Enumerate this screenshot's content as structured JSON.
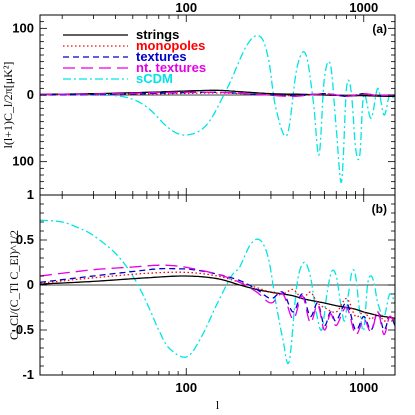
{
  "chart_data": [
    {
      "type": "line",
      "panel_label": "(a)",
      "ylabel": "l(l+1)C_l/2π[μK²]",
      "xscale": "log",
      "xlim": [
        15,
        1500
      ],
      "ylim": [
        -150,
        120
      ],
      "top_ticks": [
        100,
        1000
      ],
      "y_ticks": [
        100,
        0,
        100
      ],
      "legend_placement": "top-left",
      "series": [
        {
          "name": "strings",
          "color": "#000000",
          "dash": "solid",
          "x": [
            15,
            30,
            60,
            100,
            150,
            200,
            300,
            450,
            600,
            800,
            1000,
            1300,
            1500
          ],
          "y": [
            1,
            2,
            4,
            6,
            7,
            5,
            2,
            1,
            0,
            -1,
            -1,
            -2,
            -2
          ]
        },
        {
          "name": "monopoles",
          "color": "#ff0000",
          "dash": "dotted",
          "x": [
            15,
            40,
            80,
            150,
            250,
            400,
            600,
            800,
            1000,
            1200,
            1500
          ],
          "y": [
            0,
            1,
            2,
            3,
            1,
            -1,
            1,
            -1,
            1,
            -1,
            0
          ]
        },
        {
          "name": "textures",
          "color": "#0000cc",
          "dash": "dashed",
          "x": [
            15,
            40,
            80,
            150,
            250,
            400,
            600,
            800,
            1000,
            1200,
            1500
          ],
          "y": [
            0,
            1,
            3,
            4,
            1,
            -1,
            2,
            -2,
            2,
            -1,
            0
          ]
        },
        {
          "name": "nt. textures",
          "color": "#e600e6",
          "dash": "long-dashed",
          "x": [
            15,
            40,
            80,
            150,
            250,
            400,
            600,
            800,
            1000,
            1200,
            1500
          ],
          "y": [
            1,
            2,
            4,
            4,
            1,
            -2,
            2,
            -2,
            2,
            -1,
            0
          ]
        },
        {
          "name": "sCDM",
          "color": "#00e5e5",
          "dash": "dash-dot",
          "x": [
            15,
            30,
            45,
            60,
            80,
            100,
            130,
            170,
            220,
            260,
            290,
            320,
            370,
            420,
            470,
            520,
            560,
            600,
            650,
            700,
            750,
            800,
            850,
            900,
            950,
            1000,
            1100,
            1200,
            1300,
            1400,
            1500
          ],
          "y": [
            0,
            0,
            -3,
            -18,
            -50,
            -60,
            -45,
            10,
            75,
            88,
            55,
            -20,
            -60,
            40,
            62,
            -10,
            -90,
            25,
            45,
            -50,
            -130,
            10,
            5,
            -80,
            -90,
            0,
            -35,
            10,
            -30,
            0,
            -10
          ]
        }
      ]
    },
    {
      "type": "line",
      "panel_label": "(b)",
      "xlabel": "l",
      "ylabel": "C_Cl/(C_Tl C_El)^1/2",
      "xscale": "log",
      "xlim": [
        15,
        1500
      ],
      "ylim": [
        -1,
        1
      ],
      "x_ticks": [
        100,
        1000
      ],
      "y_ticks": [
        1,
        0.5,
        0,
        -0.5,
        -1
      ],
      "reference_line": 0,
      "series": [
        {
          "name": "strings",
          "color": "#000000",
          "dash": "solid",
          "x": [
            15,
            30,
            60,
            100,
            150,
            200,
            250,
            300,
            350,
            400,
            450,
            500,
            600,
            700,
            800,
            900,
            1000,
            1100,
            1200,
            1300,
            1400,
            1500
          ],
          "y": [
            0.01,
            0.04,
            0.08,
            0.1,
            0.07,
            0.0,
            -0.05,
            -0.08,
            -0.1,
            -0.12,
            -0.15,
            -0.17,
            -0.2,
            -0.23,
            -0.25,
            -0.27,
            -0.3,
            -0.32,
            -0.34,
            -0.35,
            -0.36,
            -0.37
          ]
        },
        {
          "name": "monopoles",
          "color": "#ff0000",
          "dash": "dotted",
          "x": [
            15,
            30,
            60,
            100,
            150,
            200,
            250,
            300,
            350,
            400,
            450,
            500,
            550,
            600,
            700,
            800,
            900,
            1000,
            1100,
            1200,
            1300,
            1400,
            1500
          ],
          "y": [
            0.02,
            0.08,
            0.13,
            0.14,
            0.1,
            0.03,
            -0.03,
            -0.08,
            -0.1,
            -0.05,
            -0.15,
            -0.08,
            -0.2,
            -0.25,
            -0.3,
            -0.15,
            -0.35,
            -0.3,
            -0.38,
            -0.3,
            -0.4,
            -0.35,
            -0.4
          ]
        },
        {
          "name": "textures",
          "color": "#0000cc",
          "dash": "dashed",
          "x": [
            15,
            30,
            50,
            70,
            90,
            110,
            150,
            200,
            250,
            300,
            350,
            400,
            450,
            500,
            550,
            600,
            650,
            700,
            800,
            900,
            1000,
            1100,
            1200,
            1300,
            1400,
            1500
          ],
          "y": [
            0.03,
            0.1,
            0.15,
            0.18,
            0.18,
            0.17,
            0.12,
            0.05,
            -0.05,
            -0.15,
            -0.08,
            -0.3,
            -0.1,
            -0.35,
            -0.2,
            -0.45,
            -0.3,
            -0.4,
            -0.2,
            -0.5,
            -0.35,
            -0.5,
            -0.3,
            -0.5,
            -0.35,
            -0.45
          ]
        },
        {
          "name": "nt. textures",
          "color": "#e600e6",
          "dash": "long-dashed",
          "x": [
            15,
            30,
            50,
            70,
            90,
            110,
            150,
            200,
            250,
            300,
            350,
            400,
            450,
            500,
            550,
            600,
            650,
            700,
            800,
            900,
            1000,
            1100,
            1200,
            1300,
            1400,
            1500
          ],
          "y": [
            0.1,
            0.17,
            0.2,
            0.22,
            0.21,
            0.18,
            0.12,
            0.03,
            -0.08,
            -0.2,
            -0.1,
            -0.38,
            -0.12,
            -0.42,
            -0.22,
            -0.5,
            -0.32,
            -0.45,
            -0.25,
            -0.55,
            -0.38,
            -0.52,
            -0.3,
            -0.55,
            -0.35,
            -0.45
          ]
        },
        {
          "name": "sCDM",
          "color": "#00e5e5",
          "dash": "dash-dot",
          "x": [
            15,
            20,
            25,
            30,
            40,
            50,
            60,
            70,
            80,
            100,
            120,
            150,
            180,
            200,
            230,
            260,
            290,
            320,
            350,
            380,
            420,
            460,
            500,
            540,
            580,
            620,
            660,
            700,
            740,
            780,
            820,
            860,
            900,
            950,
            1000,
            1050,
            1100,
            1150,
            1200,
            1300,
            1400,
            1500
          ],
          "y": [
            0.72,
            0.7,
            0.63,
            0.55,
            0.35,
            0.1,
            -0.2,
            -0.5,
            -0.7,
            -0.8,
            -0.6,
            -0.2,
            0.1,
            0.2,
            0.45,
            0.5,
            0.3,
            -0.2,
            -0.6,
            -0.85,
            0.0,
            0.25,
            0.1,
            -0.3,
            -0.5,
            -0.1,
            0.15,
            0.1,
            -0.2,
            -0.4,
            -0.1,
            0.15,
            0.1,
            -0.3,
            -0.5,
            0.0,
            0.1,
            0.0,
            -0.2,
            -0.35,
            -0.1,
            -0.2
          ]
        }
      ]
    }
  ]
}
